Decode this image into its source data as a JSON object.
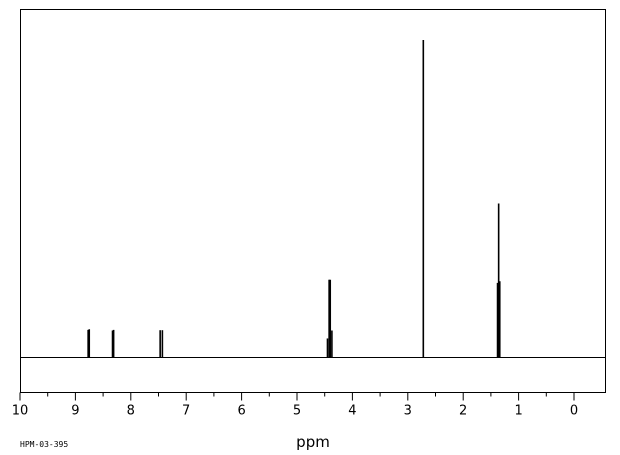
{
  "chart_data": {
    "type": "line",
    "xlabel": "ppm",
    "ylabel": "",
    "xlim": [
      10,
      -0.5
    ],
    "x_reversed": true,
    "ylim": [
      -0.08,
      1.05
    ],
    "major_ticks": [
      10,
      9,
      8,
      7,
      6,
      5,
      4,
      3,
      2,
      1,
      0
    ],
    "tick_labels": [
      "10",
      "9",
      "8",
      "7",
      "6",
      "5",
      "4",
      "3",
      "2",
      "1",
      "0"
    ],
    "minor_tick_step": 0.5,
    "grid": false,
    "legend": "none",
    "annotation": "HPM-03-395",
    "series": [
      {
        "peaks": [
          {
            "ppm": 8.77,
            "height": 0.087
          },
          {
            "ppm": 8.75,
            "height": 0.089
          },
          {
            "ppm": 8.33,
            "height": 0.085
          },
          {
            "ppm": 8.31,
            "height": 0.087
          },
          {
            "ppm": 7.47,
            "height": 0.086
          },
          {
            "ppm": 7.43,
            "height": 0.086
          },
          {
            "ppm": 4.45,
            "height": 0.06
          },
          {
            "ppm": 4.42,
            "height": 0.245
          },
          {
            "ppm": 4.4,
            "height": 0.245
          },
          {
            "ppm": 4.37,
            "height": 0.085
          },
          {
            "ppm": 2.72,
            "height": 1.0
          },
          {
            "ppm": 1.38,
            "height": 0.235
          },
          {
            "ppm": 1.36,
            "height": 0.485
          },
          {
            "ppm": 1.34,
            "height": 0.24
          }
        ]
      }
    ]
  }
}
